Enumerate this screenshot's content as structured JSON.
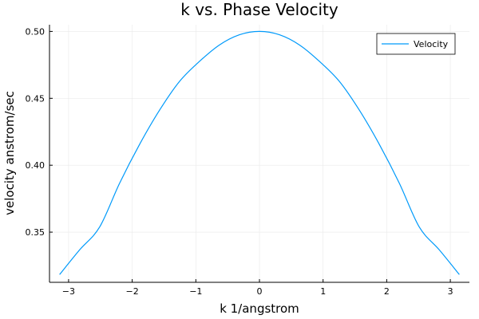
{
  "chart_data": {
    "type": "line",
    "title": "k vs. Phase Velocity",
    "xlabel": "k 1/angstrom",
    "ylabel": "velocity anstrom/sec",
    "xlim": [
      -3.3,
      3.3
    ],
    "ylim": [
      0.3125,
      0.505
    ],
    "xticks": [
      -3,
      -2,
      -1,
      0,
      1,
      2,
      3
    ],
    "xtick_labels": [
      "−3",
      "−2",
      "−1",
      "0",
      "1",
      "2",
      "3"
    ],
    "yticks": [
      0.35,
      0.4,
      0.45,
      0.5
    ],
    "ytick_labels": [
      "0.35",
      "0.40",
      "0.45",
      "0.50"
    ],
    "grid": true,
    "legend": "top-right",
    "colors": {
      "series": "#009AFA"
    },
    "series": [
      {
        "name": "Velocity",
        "x": [
          -3.1416,
          -2.8274,
          -2.5133,
          -2.1991,
          -1.885,
          -1.5708,
          -1.2566,
          -0.9425,
          -0.6283,
          -0.3142,
          0.0,
          0.3142,
          0.6283,
          0.9425,
          1.2566,
          1.5708,
          1.885,
          2.1991,
          2.5133,
          2.8274,
          3.1416
        ],
        "values": [
          0.3183,
          0.3367,
          0.3537,
          0.3865,
          0.4155,
          0.4411,
          0.4626,
          0.4776,
          0.4899,
          0.4975,
          0.5,
          0.4975,
          0.4899,
          0.4776,
          0.4626,
          0.4411,
          0.4155,
          0.3865,
          0.3537,
          0.3367,
          0.3183
        ]
      }
    ]
  }
}
